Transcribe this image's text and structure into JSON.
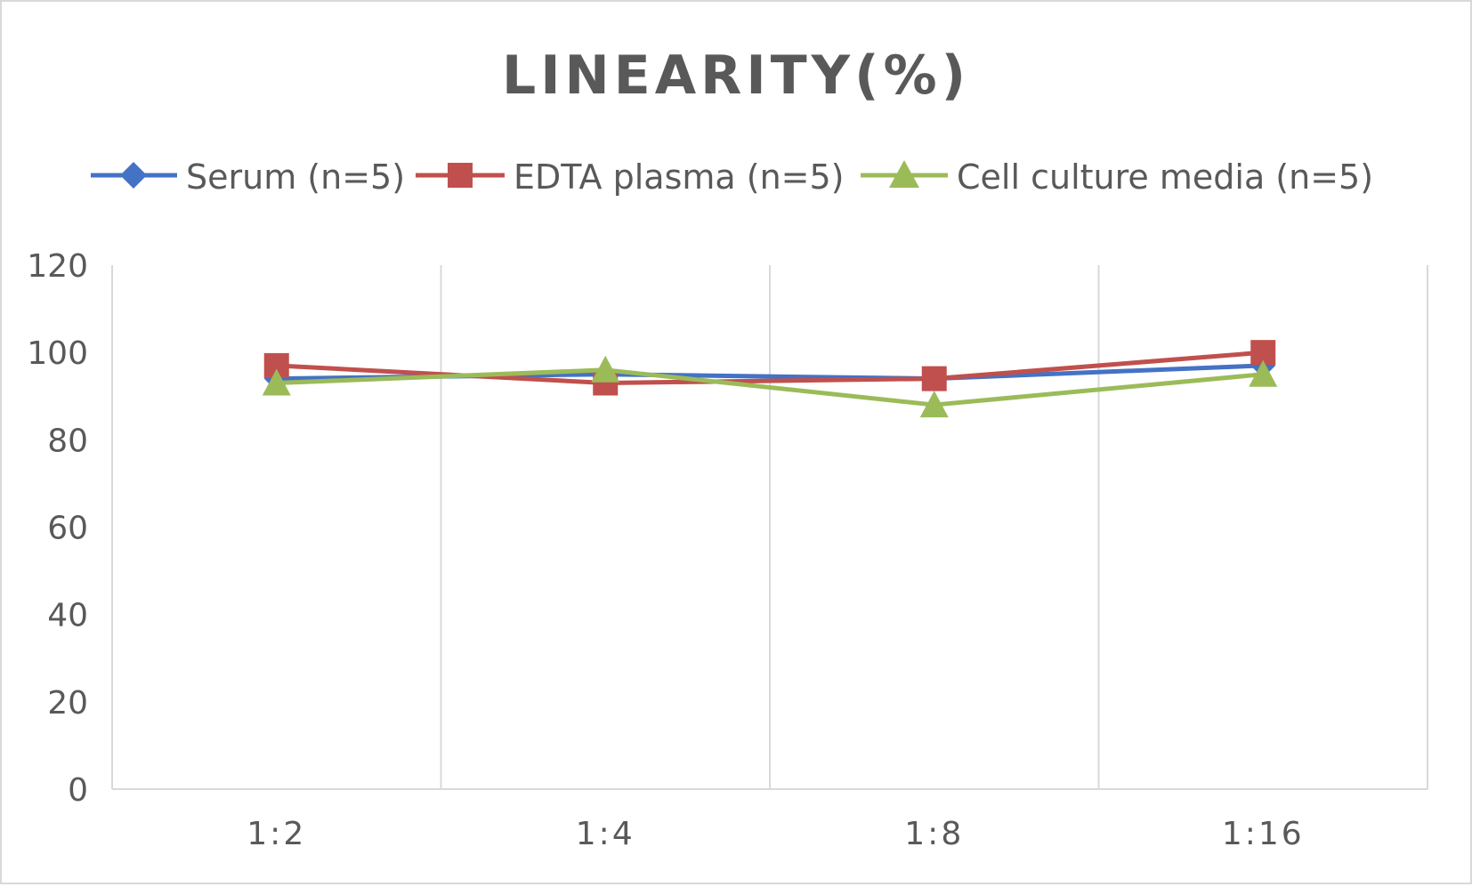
{
  "chart_data": {
    "type": "line",
    "title": "LINEARITY(%)",
    "xlabel": "",
    "ylabel": "",
    "categories": [
      "1:2",
      "1:4",
      "1:8",
      "1:16"
    ],
    "ylim": [
      0,
      120
    ],
    "yticks": [
      0,
      20,
      40,
      60,
      80,
      100,
      120
    ],
    "grid": "vertical",
    "legend_position": "top",
    "series": [
      {
        "name": "Serum (n=5)",
        "values": [
          94,
          95,
          94,
          97
        ],
        "color": "#4472c4",
        "marker": "diamond"
      },
      {
        "name": "EDTA plasma (n=5)",
        "values": [
          97,
          93,
          94,
          100
        ],
        "color": "#c0504d",
        "marker": "square"
      },
      {
        "name": "Cell culture media (n=5)",
        "values": [
          93,
          96,
          88,
          95
        ],
        "color": "#9bbb59",
        "marker": "triangle"
      }
    ]
  }
}
